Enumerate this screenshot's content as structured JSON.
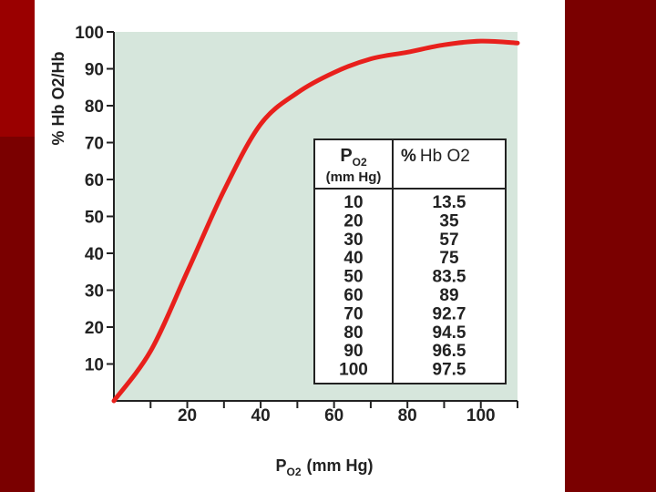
{
  "colors": {
    "background_dark": "#7a0000",
    "background_accent": "#9a0000",
    "plot_area": "#d6e6dc",
    "curve": "#e8201c",
    "ink": "#222222"
  },
  "chart_data": {
    "type": "line",
    "title": "",
    "ylabel": "% Hb O2/Hb",
    "xlabel_prefix": "P",
    "xlabel_sub": "O2",
    "xlabel_suffix": "(mm Hg)",
    "xlim": [
      0,
      110
    ],
    "ylim": [
      0,
      100
    ],
    "x_ticks": [
      20,
      40,
      60,
      80,
      100
    ],
    "y_ticks": [
      10,
      20,
      30,
      40,
      50,
      60,
      70,
      80,
      90,
      100
    ],
    "grid": false,
    "series": [
      {
        "x": [
          0,
          10,
          20,
          30,
          40,
          50,
          60,
          70,
          80,
          90,
          100,
          110
        ],
        "y": [
          0,
          13.5,
          35,
          57,
          75,
          83.5,
          89,
          92.7,
          94.5,
          96.5,
          97.5,
          97
        ]
      }
    ],
    "table": {
      "header_left_prefix": "P",
      "header_left_sub": "O2",
      "header_left_unit": "(mm Hg)",
      "header_right_symbol": "%",
      "header_right_text": "Hb O2",
      "rows": [
        {
          "po2": "10",
          "pct": "13.5"
        },
        {
          "po2": "20",
          "pct": "35"
        },
        {
          "po2": "30",
          "pct": "57"
        },
        {
          "po2": "40",
          "pct": "75"
        },
        {
          "po2": "50",
          "pct": "83.5"
        },
        {
          "po2": "60",
          "pct": "89"
        },
        {
          "po2": "70",
          "pct": "92.7"
        },
        {
          "po2": "80",
          "pct": "94.5"
        },
        {
          "po2": "90",
          "pct": "96.5"
        },
        {
          "po2": "100",
          "pct": "97.5"
        }
      ]
    }
  }
}
